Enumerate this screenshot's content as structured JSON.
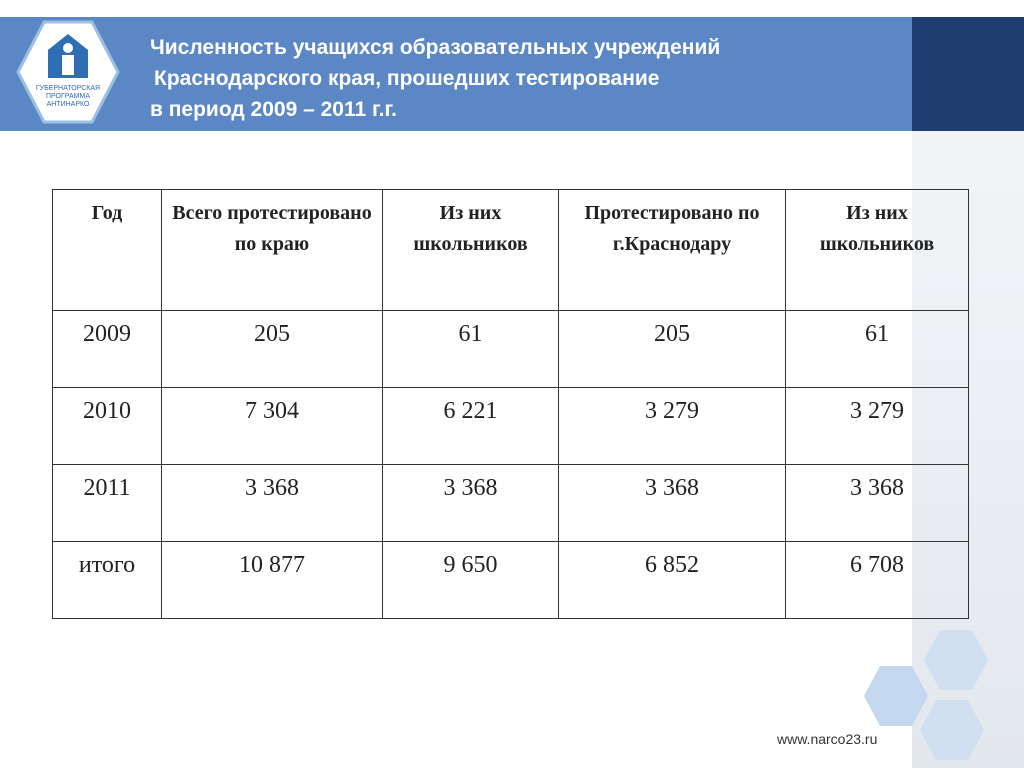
{
  "header": {
    "title_lines": [
      "Численность учащихся образовательных учреждений",
      "Краснодарского края, прошедших тестирование",
      "в период 2009 – 2011 г.г."
    ],
    "logo_lines": [
      "ГУБЕРНАТОРСКАЯ",
      "ПРОГРАММА",
      "АНТИНАРКО"
    ]
  },
  "table": {
    "columns": [
      "Год",
      "Всего протестировано по краю",
      "Из них школьников",
      "Протестировано по г.Краснодару",
      "Из них школьников"
    ],
    "rows": [
      [
        "2009",
        "205",
        "61",
        "205",
        "61"
      ],
      [
        "2010",
        "7 304",
        "6 221",
        "3 279",
        "3 279"
      ],
      [
        "2011",
        "3 368",
        "3 368",
        "3 368",
        "3 368"
      ],
      [
        "итого",
        "10 877",
        "9 650",
        "6 852",
        "6 708"
      ]
    ]
  },
  "footer": {
    "url": "www.narco23.ru"
  }
}
